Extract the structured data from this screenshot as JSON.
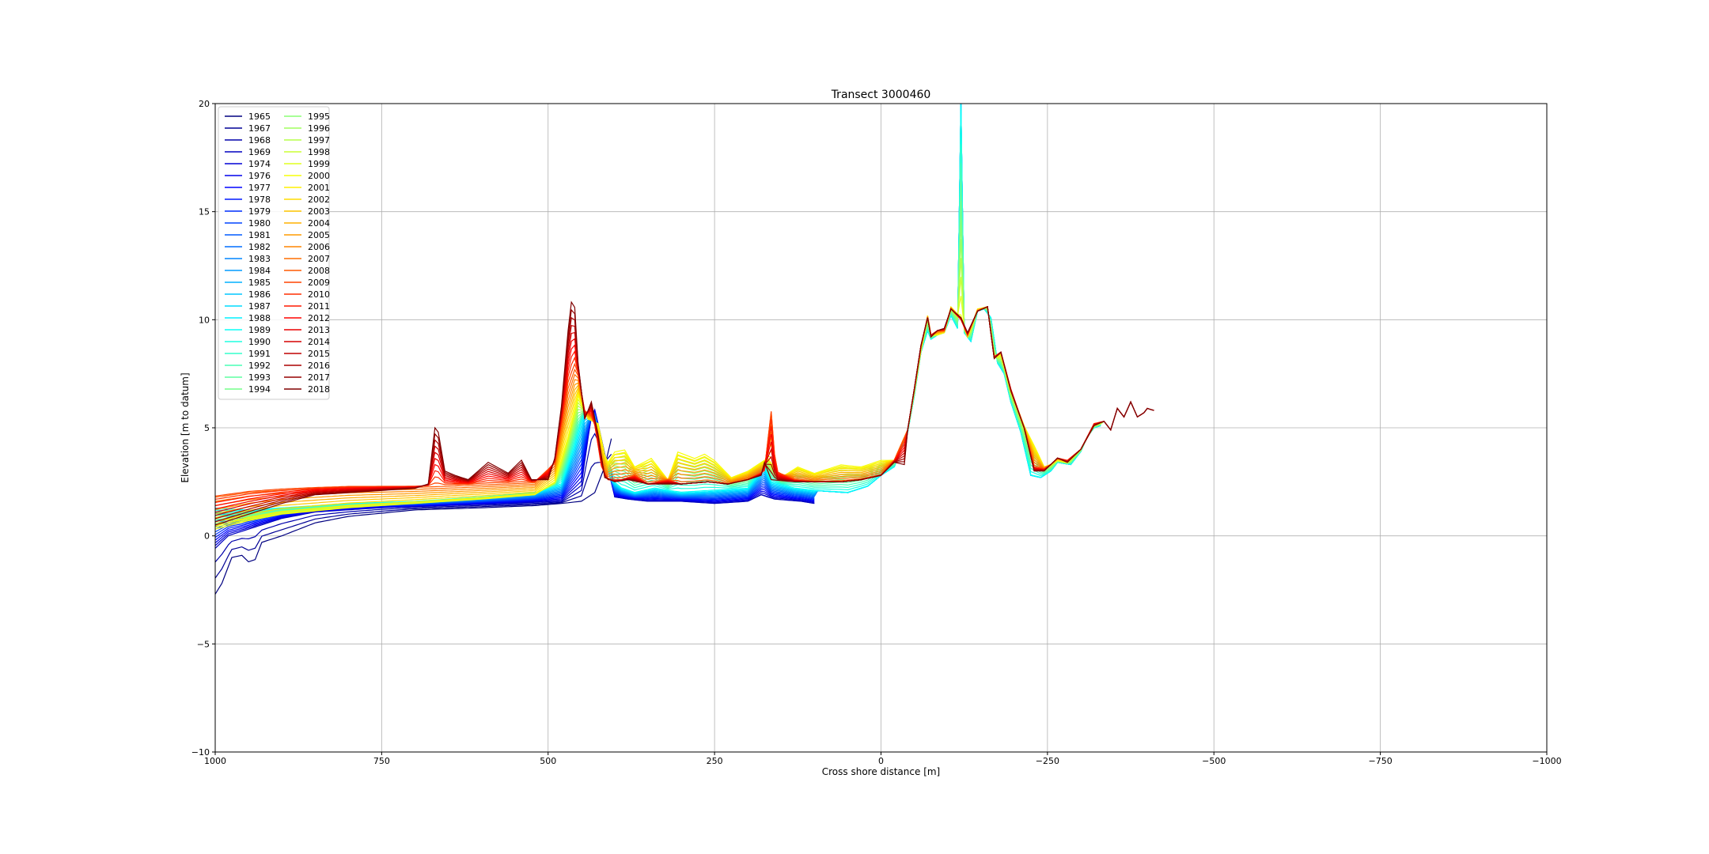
{
  "chart_data": {
    "type": "line",
    "title": "Transect 3000460",
    "xlabel": "Cross shore distance [m]",
    "ylabel": "Elevation [m to datum]",
    "xlim": [
      1000,
      -1000
    ],
    "ylim": [
      -10,
      20
    ],
    "xticks": [
      1000,
      750,
      500,
      250,
      0,
      -250,
      -500,
      -750,
      -1000
    ],
    "xtick_labels": [
      "1000",
      "750",
      "500",
      "250",
      "0",
      "−250",
      "−500",
      "−750",
      "−1000"
    ],
    "yticks": [
      -10,
      -5,
      0,
      5,
      10,
      15,
      20
    ],
    "ytick_labels": [
      "−10",
      "−5",
      "0",
      "5",
      "10",
      "15",
      "20"
    ],
    "grid": true,
    "legend_position": "top-left",
    "legend_columns": 2,
    "colormap": "jet",
    "series_names": [
      "1965",
      "1967",
      "1968",
      "1969",
      "1974",
      "1976",
      "1977",
      "1978",
      "1979",
      "1980",
      "1981",
      "1982",
      "1983",
      "1984",
      "1985",
      "1986",
      "1987",
      "1988",
      "1989",
      "1990",
      "1991",
      "1992",
      "1993",
      "1994",
      "1995",
      "1996",
      "1997",
      "1998",
      "1999",
      "2000",
      "2001",
      "2002",
      "2003",
      "2004",
      "2005",
      "2006",
      "2007",
      "2008",
      "2009",
      "2010",
      "2011",
      "2012",
      "2013",
      "2014",
      "2015",
      "2016",
      "2017",
      "2018"
    ],
    "representative_profiles": {
      "early_1965": [
        [
          1000,
          -2.7
        ],
        [
          990,
          -2.2
        ],
        [
          975,
          -1.0
        ],
        [
          960,
          -0.9
        ],
        [
          950,
          -1.2
        ],
        [
          940,
          -1.1
        ],
        [
          930,
          -0.3
        ],
        [
          900,
          0.0
        ],
        [
          850,
          0.6
        ],
        [
          800,
          0.9
        ],
        [
          700,
          1.2
        ],
        [
          600,
          1.3
        ],
        [
          520,
          1.4
        ],
        [
          480,
          1.5
        ],
        [
          450,
          1.6
        ],
        [
          430,
          2.0
        ],
        [
          415,
          3.2
        ],
        [
          405,
          4.5
        ]
      ],
      "early_1969": [
        [
          1000,
          -0.6
        ],
        [
          980,
          0.0
        ],
        [
          950,
          0.3
        ],
        [
          900,
          0.8
        ],
        [
          850,
          1.1
        ],
        [
          750,
          1.3
        ],
        [
          650,
          1.4
        ],
        [
          550,
          1.5
        ],
        [
          480,
          1.6
        ],
        [
          450,
          2.3
        ],
        [
          440,
          4.5
        ],
        [
          432,
          6.1
        ],
        [
          425,
          5.2
        ],
        [
          415,
          3.8
        ],
        [
          400,
          1.8
        ],
        [
          380,
          1.7
        ],
        [
          350,
          1.6
        ],
        [
          300,
          1.6
        ],
        [
          250,
          1.5
        ],
        [
          200,
          1.6
        ],
        [
          180,
          1.9
        ],
        [
          160,
          1.7
        ],
        [
          120,
          1.6
        ],
        [
          100,
          1.5
        ]
      ],
      "mid_1988": [
        [
          1000,
          1.3
        ],
        [
          950,
          1.2
        ],
        [
          900,
          1.3
        ],
        [
          800,
          1.5
        ],
        [
          700,
          1.6
        ],
        [
          600,
          1.8
        ],
        [
          520,
          2.0
        ],
        [
          480,
          2.4
        ],
        [
          460,
          4.2
        ],
        [
          445,
          5.8
        ],
        [
          430,
          5.4
        ],
        [
          420,
          4.1
        ],
        [
          405,
          2.6
        ],
        [
          390,
          2.2
        ],
        [
          370,
          2.0
        ],
        [
          340,
          2.2
        ],
        [
          300,
          2.0
        ],
        [
          250,
          2.1
        ],
        [
          200,
          2.2
        ],
        [
          175,
          3.2
        ],
        [
          165,
          2.5
        ],
        [
          130,
          2.2
        ],
        [
          100,
          2.1
        ],
        [
          50,
          2.0
        ],
        [
          20,
          2.3
        ],
        [
          0,
          2.8
        ],
        [
          -20,
          3.2
        ],
        [
          -40,
          4.8
        ],
        [
          -50,
          6.5
        ],
        [
          -60,
          8.5
        ],
        [
          -70,
          9.5
        ],
        [
          -75,
          9.1
        ],
        [
          -85,
          9.3
        ],
        [
          -95,
          9.4
        ],
        [
          -105,
          10.2
        ],
        [
          -115,
          9.6
        ],
        [
          -118,
          20.0
        ],
        [
          -122,
          20.0
        ],
        [
          -125,
          9.4
        ],
        [
          -135,
          9.0
        ],
        [
          -145,
          10.4
        ],
        [
          -155,
          10.5
        ],
        [
          -165,
          10.1
        ],
        [
          -175,
          8.0
        ],
        [
          -185,
          7.5
        ],
        [
          -195,
          6.2
        ],
        [
          -210,
          4.8
        ],
        [
          -225,
          2.8
        ],
        [
          -240,
          2.7
        ],
        [
          -255,
          3.0
        ],
        [
          -265,
          3.4
        ],
        [
          -285,
          3.3
        ],
        [
          -300,
          3.9
        ],
        [
          -310,
          4.6
        ],
        [
          -320,
          5.0
        ],
        [
          -330,
          5.1
        ]
      ],
      "mid_1999": [
        [
          1000,
          0.3
        ],
        [
          950,
          0.7
        ],
        [
          900,
          1.0
        ],
        [
          800,
          1.3
        ],
        [
          700,
          1.5
        ],
        [
          600,
          1.7
        ],
        [
          520,
          1.9
        ],
        [
          490,
          2.5
        ],
        [
          470,
          4.6
        ],
        [
          455,
          6.5
        ],
        [
          440,
          5.4
        ],
        [
          425,
          5.2
        ],
        [
          412,
          3.3
        ],
        [
          400,
          3.9
        ],
        [
          385,
          4.0
        ],
        [
          370,
          3.2
        ],
        [
          345,
          3.6
        ],
        [
          320,
          2.6
        ],
        [
          305,
          3.9
        ],
        [
          280,
          3.6
        ],
        [
          265,
          3.8
        ],
        [
          250,
          3.5
        ],
        [
          225,
          2.7
        ],
        [
          200,
          3.0
        ],
        [
          170,
          3.6
        ],
        [
          150,
          2.7
        ],
        [
          125,
          3.2
        ],
        [
          100,
          2.9
        ],
        [
          60,
          3.3
        ],
        [
          30,
          3.2
        ],
        [
          0,
          3.5
        ],
        [
          -20,
          3.5
        ],
        [
          -40,
          4.9
        ],
        [
          -50,
          6.7
        ],
        [
          -60,
          8.6
        ],
        [
          -70,
          10.2
        ],
        [
          -75,
          9.3
        ],
        [
          -85,
          9.3
        ],
        [
          -95,
          9.4
        ],
        [
          -105,
          10.6
        ],
        [
          -120,
          10.1
        ],
        [
          -130,
          9.2
        ],
        [
          -145,
          10.5
        ],
        [
          -160,
          10.6
        ],
        [
          -170,
          8.2
        ],
        [
          -180,
          8.4
        ],
        [
          -195,
          6.7
        ],
        [
          -215,
          5.1
        ],
        [
          -230,
          4.2
        ],
        [
          -245,
          3.2
        ],
        [
          -255,
          3.3
        ],
        [
          -265,
          3.5
        ],
        [
          -280,
          3.4
        ],
        [
          -300,
          4.0
        ],
        [
          -320,
          5.1
        ],
        [
          -335,
          5.3
        ]
      ],
      "recent_2007": [
        [
          1000,
          1.9
        ],
        [
          950,
          2.1
        ],
        [
          900,
          2.2
        ],
        [
          800,
          2.3
        ],
        [
          700,
          2.3
        ],
        [
          600,
          2.4
        ],
        [
          520,
          2.5
        ],
        [
          490,
          3.4
        ],
        [
          470,
          7.0
        ],
        [
          458,
          8.0
        ],
        [
          445,
          5.8
        ],
        [
          432,
          5.5
        ],
        [
          420,
          3.2
        ],
        [
          410,
          2.6
        ],
        [
          390,
          2.6
        ],
        [
          370,
          2.8
        ],
        [
          350,
          2.4
        ],
        [
          320,
          2.6
        ],
        [
          300,
          2.4
        ],
        [
          260,
          2.5
        ],
        [
          230,
          2.4
        ],
        [
          200,
          2.6
        ],
        [
          175,
          3.0
        ],
        [
          165,
          5.9
        ],
        [
          158,
          3.0
        ],
        [
          130,
          2.6
        ],
        [
          100,
          2.5
        ],
        [
          60,
          2.5
        ],
        [
          30,
          2.6
        ],
        [
          0,
          2.8
        ],
        [
          -20,
          3.5
        ],
        [
          -40,
          4.9
        ],
        [
          -50,
          6.8
        ],
        [
          -60,
          8.8
        ],
        [
          -70,
          10.1
        ],
        [
          -75,
          9.3
        ],
        [
          -85,
          9.5
        ],
        [
          -95,
          9.5
        ],
        [
          -105,
          10.5
        ],
        [
          -120,
          10.0
        ],
        [
          -130,
          9.3
        ],
        [
          -145,
          10.4
        ],
        [
          -160,
          10.6
        ],
        [
          -170,
          8.3
        ],
        [
          -180,
          8.5
        ],
        [
          -195,
          6.8
        ],
        [
          -215,
          5.0
        ],
        [
          -230,
          3.2
        ],
        [
          -245,
          3.1
        ],
        [
          -255,
          3.3
        ],
        [
          -265,
          3.6
        ],
        [
          -280,
          3.5
        ],
        [
          -300,
          4.0
        ],
        [
          -320,
          5.2
        ],
        [
          -335,
          5.3
        ]
      ],
      "recent_2018": [
        [
          1000,
          0.5
        ],
        [
          950,
          1.0
        ],
        [
          900,
          1.5
        ],
        [
          850,
          1.9
        ],
        [
          800,
          2.0
        ],
        [
          750,
          2.1
        ],
        [
          700,
          2.2
        ],
        [
          680,
          2.4
        ],
        [
          670,
          5.0
        ],
        [
          665,
          4.8
        ],
        [
          655,
          3.0
        ],
        [
          640,
          2.8
        ],
        [
          620,
          2.6
        ],
        [
          590,
          3.4
        ],
        [
          560,
          2.9
        ],
        [
          540,
          3.5
        ],
        [
          525,
          2.6
        ],
        [
          500,
          2.6
        ],
        [
          490,
          3.6
        ],
        [
          480,
          6.0
        ],
        [
          470,
          9.5
        ],
        [
          462,
          11.6
        ],
        [
          455,
          8.0
        ],
        [
          445,
          5.4
        ],
        [
          435,
          6.2
        ],
        [
          425,
          4.7
        ],
        [
          415,
          2.7
        ],
        [
          400,
          2.5
        ],
        [
          380,
          2.6
        ],
        [
          350,
          2.4
        ],
        [
          300,
          2.4
        ],
        [
          260,
          2.5
        ],
        [
          230,
          2.4
        ],
        [
          200,
          2.6
        ],
        [
          180,
          2.8
        ],
        [
          175,
          3.4
        ],
        [
          165,
          2.6
        ],
        [
          130,
          2.5
        ],
        [
          100,
          2.5
        ],
        [
          60,
          2.5
        ],
        [
          30,
          2.6
        ],
        [
          0,
          2.8
        ],
        [
          -20,
          3.4
        ],
        [
          -35,
          3.3
        ],
        [
          -40,
          4.9
        ],
        [
          -50,
          6.8
        ],
        [
          -60,
          8.8
        ],
        [
          -70,
          10.1
        ],
        [
          -75,
          9.2
        ],
        [
          -85,
          9.5
        ],
        [
          -95,
          9.6
        ],
        [
          -105,
          10.5
        ],
        [
          -120,
          10.1
        ],
        [
          -130,
          9.4
        ],
        [
          -145,
          10.4
        ],
        [
          -160,
          10.6
        ],
        [
          -170,
          8.2
        ],
        [
          -180,
          8.5
        ],
        [
          -195,
          6.7
        ],
        [
          -215,
          5.0
        ],
        [
          -230,
          3.0
        ],
        [
          -245,
          3.0
        ],
        [
          -255,
          3.3
        ],
        [
          -265,
          3.6
        ],
        [
          -280,
          3.4
        ],
        [
          -300,
          4.0
        ],
        [
          -320,
          5.1
        ],
        [
          -335,
          5.3
        ],
        [
          -345,
          4.9
        ],
        [
          -355,
          5.9
        ],
        [
          -365,
          5.5
        ],
        [
          -375,
          6.2
        ],
        [
          -385,
          5.5
        ],
        [
          -395,
          5.7
        ],
        [
          -400,
          5.9
        ],
        [
          -410,
          5.8
        ]
      ]
    }
  }
}
